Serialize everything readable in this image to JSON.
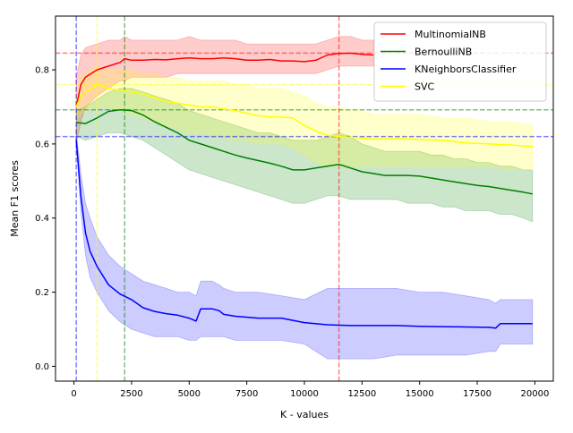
{
  "chart_data": {
    "type": "line",
    "title": "",
    "xlabel": "K - values",
    "ylabel": "Mean F1 scores",
    "xlim": [
      -800,
      20800
    ],
    "ylim": [
      -0.04,
      0.945
    ],
    "xticks": [
      0,
      2500,
      5000,
      7500,
      10000,
      12500,
      15000,
      17500,
      20000
    ],
    "xtick_labels": [
      "0",
      "2500",
      "5000",
      "7500",
      "10000",
      "12500",
      "15000",
      "17500",
      "20000"
    ],
    "yticks": [
      0.0,
      0.2,
      0.4,
      0.6,
      0.8
    ],
    "ytick_labels": [
      "0.0",
      "0.2",
      "0.4",
      "0.6",
      "0.8"
    ],
    "grid": false,
    "legend_position": "top-right",
    "series": [
      {
        "name": "MultinomialNB",
        "color": "#ff0000",
        "x": [
          100,
          300,
          500,
          1000,
          1500,
          2000,
          2200,
          2500,
          3000,
          3500,
          4000,
          4500,
          5000,
          5500,
          6000,
          6500,
          7000,
          7500,
          8000,
          8500,
          9000,
          9500,
          10000,
          10500,
          11000,
          11500,
          12000,
          12500,
          13000
        ],
        "y": [
          0.7,
          0.76,
          0.78,
          0.8,
          0.81,
          0.82,
          0.83,
          0.826,
          0.826,
          0.828,
          0.827,
          0.83,
          0.832,
          0.83,
          0.83,
          0.832,
          0.83,
          0.826,
          0.826,
          0.828,
          0.824,
          0.824,
          0.822,
          0.826,
          0.84,
          0.844,
          0.845,
          0.842,
          0.84
        ],
        "lower": [
          0.6,
          0.66,
          0.7,
          0.73,
          0.75,
          0.77,
          0.77,
          0.78,
          0.78,
          0.78,
          0.78,
          0.79,
          0.79,
          0.79,
          0.79,
          0.79,
          0.79,
          0.79,
          0.79,
          0.79,
          0.79,
          0.79,
          0.79,
          0.79,
          0.8,
          0.81,
          0.81,
          0.81,
          0.81
        ],
        "upper": [
          0.78,
          0.84,
          0.86,
          0.87,
          0.88,
          0.88,
          0.89,
          0.88,
          0.88,
          0.88,
          0.88,
          0.88,
          0.89,
          0.88,
          0.88,
          0.88,
          0.88,
          0.87,
          0.87,
          0.87,
          0.87,
          0.87,
          0.87,
          0.87,
          0.88,
          0.89,
          0.89,
          0.88,
          0.88
        ]
      },
      {
        "name": "BernoulliNB",
        "color": "#008000",
        "x": [
          100,
          500,
          1000,
          1500,
          2000,
          2500,
          3000,
          3500,
          4000,
          4500,
          5000,
          5500,
          6000,
          6500,
          7000,
          7500,
          8000,
          8500,
          9000,
          9500,
          10000,
          10500,
          11000,
          11500,
          12000,
          12500,
          13000,
          13500,
          14000,
          14500,
          15000,
          15500,
          16000,
          16500,
          17000,
          17500,
          18000,
          18500,
          19000,
          19500,
          19900
        ],
        "y": [
          0.658,
          0.655,
          0.67,
          0.688,
          0.692,
          0.69,
          0.678,
          0.66,
          0.645,
          0.63,
          0.61,
          0.6,
          0.59,
          0.58,
          0.57,
          0.562,
          0.555,
          0.548,
          0.54,
          0.53,
          0.53,
          0.535,
          0.54,
          0.545,
          0.535,
          0.525,
          0.52,
          0.515,
          0.515,
          0.515,
          0.513,
          0.508,
          0.503,
          0.498,
          0.493,
          0.488,
          0.485,
          0.48,
          0.475,
          0.47,
          0.465
        ],
        "lower": [
          0.62,
          0.61,
          0.62,
          0.63,
          0.63,
          0.62,
          0.61,
          0.59,
          0.57,
          0.55,
          0.53,
          0.52,
          0.51,
          0.5,
          0.49,
          0.48,
          0.47,
          0.46,
          0.45,
          0.44,
          0.44,
          0.45,
          0.46,
          0.46,
          0.45,
          0.45,
          0.45,
          0.45,
          0.45,
          0.44,
          0.44,
          0.44,
          0.43,
          0.43,
          0.42,
          0.42,
          0.42,
          0.41,
          0.41,
          0.4,
          0.39
        ],
        "upper": [
          0.69,
          0.7,
          0.72,
          0.74,
          0.75,
          0.75,
          0.74,
          0.73,
          0.72,
          0.71,
          0.69,
          0.68,
          0.67,
          0.66,
          0.65,
          0.64,
          0.63,
          0.63,
          0.62,
          0.61,
          0.61,
          0.61,
          0.62,
          0.63,
          0.62,
          0.6,
          0.59,
          0.58,
          0.58,
          0.58,
          0.58,
          0.57,
          0.57,
          0.56,
          0.56,
          0.55,
          0.55,
          0.54,
          0.54,
          0.53,
          0.53
        ]
      },
      {
        "name": "KNeighborsClassifier",
        "color": "#0000ff",
        "x": [
          100,
          300,
          500,
          700,
          1000,
          1500,
          2000,
          2500,
          3000,
          3500,
          4000,
          4500,
          5000,
          5300,
          5500,
          6000,
          6300,
          6500,
          7000,
          8000,
          9000,
          10000,
          11000,
          12000,
          13000,
          14000,
          15000,
          16000,
          17000,
          18000,
          18300,
          18500,
          19000,
          19900
        ],
        "y": [
          0.61,
          0.46,
          0.36,
          0.31,
          0.27,
          0.22,
          0.195,
          0.18,
          0.158,
          0.148,
          0.142,
          0.138,
          0.13,
          0.122,
          0.155,
          0.155,
          0.15,
          0.14,
          0.135,
          0.13,
          0.13,
          0.118,
          0.112,
          0.11,
          0.11,
          0.11,
          0.108,
          0.107,
          0.106,
          0.105,
          0.103,
          0.115,
          0.115,
          0.115
        ],
        "lower": [
          0.6,
          0.42,
          0.3,
          0.24,
          0.2,
          0.15,
          0.12,
          0.1,
          0.09,
          0.08,
          0.08,
          0.08,
          0.07,
          0.07,
          0.08,
          0.08,
          0.08,
          0.08,
          0.07,
          0.07,
          0.07,
          0.06,
          0.02,
          0.02,
          0.02,
          0.03,
          0.03,
          0.03,
          0.03,
          0.04,
          0.04,
          0.06,
          0.06,
          0.06
        ],
        "upper": [
          0.63,
          0.52,
          0.44,
          0.4,
          0.35,
          0.3,
          0.27,
          0.25,
          0.23,
          0.22,
          0.21,
          0.2,
          0.2,
          0.19,
          0.23,
          0.23,
          0.22,
          0.21,
          0.2,
          0.2,
          0.19,
          0.18,
          0.21,
          0.21,
          0.21,
          0.21,
          0.2,
          0.2,
          0.19,
          0.18,
          0.17,
          0.18,
          0.18,
          0.18
        ]
      },
      {
        "name": "SVC",
        "color": "#ffff00",
        "x": [
          100,
          300,
          500,
          1000,
          1500,
          2000,
          2500,
          3000,
          3500,
          4000,
          4500,
          5000,
          5500,
          6000,
          6500,
          7000,
          7500,
          8000,
          8500,
          9000,
          9500,
          10000,
          10500,
          11000,
          11500,
          12000,
          12500,
          13000,
          14000,
          15000,
          16000,
          17000,
          18000,
          19000,
          19900
        ],
        "y": [
          0.7,
          0.73,
          0.74,
          0.76,
          0.75,
          0.745,
          0.74,
          0.735,
          0.725,
          0.715,
          0.71,
          0.705,
          0.7,
          0.7,
          0.695,
          0.69,
          0.683,
          0.676,
          0.673,
          0.673,
          0.67,
          0.65,
          0.635,
          0.623,
          0.62,
          0.618,
          0.616,
          0.613,
          0.615,
          0.612,
          0.61,
          0.603,
          0.6,
          0.597,
          0.593
        ],
        "lower": [
          0.67,
          0.68,
          0.69,
          0.7,
          0.7,
          0.69,
          0.68,
          0.67,
          0.66,
          0.65,
          0.64,
          0.63,
          0.63,
          0.62,
          0.62,
          0.61,
          0.61,
          0.6,
          0.6,
          0.6,
          0.59,
          0.57,
          0.55,
          0.54,
          0.54,
          0.54,
          0.54,
          0.54,
          0.54,
          0.54,
          0.54,
          0.54,
          0.54,
          0.53,
          0.53
        ],
        "upper": [
          0.73,
          0.78,
          0.79,
          0.81,
          0.8,
          0.8,
          0.8,
          0.79,
          0.79,
          0.78,
          0.78,
          0.77,
          0.77,
          0.77,
          0.77,
          0.76,
          0.76,
          0.75,
          0.75,
          0.75,
          0.74,
          0.73,
          0.71,
          0.7,
          0.7,
          0.69,
          0.69,
          0.68,
          0.68,
          0.68,
          0.67,
          0.67,
          0.66,
          0.66,
          0.65
        ]
      }
    ],
    "reference_lines": [
      {
        "orientation": "horizontal",
        "value": 0.845,
        "color": "#ff0000"
      },
      {
        "orientation": "horizontal",
        "value": 0.76,
        "color": "#ffff00"
      },
      {
        "orientation": "horizontal",
        "value": 0.692,
        "color": "#008000"
      },
      {
        "orientation": "horizontal",
        "value": 0.62,
        "color": "#0000ff"
      },
      {
        "orientation": "vertical",
        "value": 100,
        "color": "#0000ff"
      },
      {
        "orientation": "vertical",
        "value": 1000,
        "color": "#ffff00"
      },
      {
        "orientation": "vertical",
        "value": 2200,
        "color": "#008000"
      },
      {
        "orientation": "vertical",
        "value": 11500,
        "color": "#ff0000"
      }
    ]
  }
}
